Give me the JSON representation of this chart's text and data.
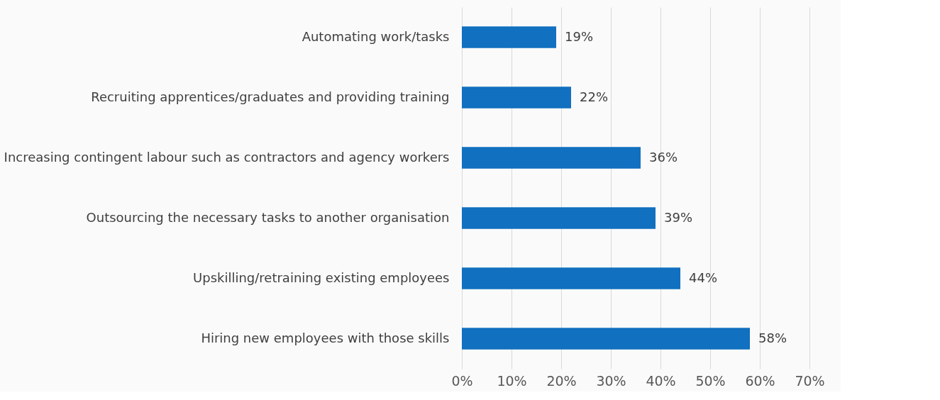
{
  "chart_data": {
    "type": "bar",
    "orientation": "horizontal",
    "categories": [
      "Automating work/tasks",
      "Recruiting apprentices/graduates and providing training",
      "Increasing contingent labour such as contractors and agency workers",
      "Outsourcing the necessary tasks to another organisation",
      "Upskilling/retraining existing employees",
      "Hiring new employees with those skills"
    ],
    "values": [
      19,
      22,
      36,
      39,
      44,
      58
    ],
    "value_labels": [
      "19%",
      "22%",
      "36%",
      "39%",
      "44%",
      "58%"
    ],
    "color": "#1170bf",
    "xlim": [
      0,
      70
    ],
    "xticks": [
      {
        "value": 0,
        "label": "0%"
      },
      {
        "value": 10,
        "label": "10%"
      },
      {
        "value": 20,
        "label": "20%"
      },
      {
        "value": 30,
        "label": "30%"
      },
      {
        "value": 40,
        "label": "40%"
      },
      {
        "value": 50,
        "label": "50%"
      },
      {
        "value": 60,
        "label": "60%"
      },
      {
        "value": 70,
        "label": "70%"
      }
    ],
    "grid": "x"
  }
}
